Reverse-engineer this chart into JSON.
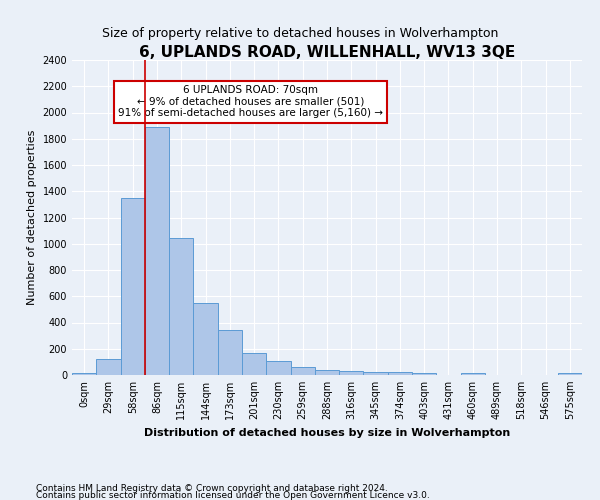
{
  "title": "6, UPLANDS ROAD, WILLENHALL, WV13 3QE",
  "subtitle": "Size of property relative to detached houses in Wolverhampton",
  "xlabel": "Distribution of detached houses by size in Wolverhampton",
  "ylabel": "Number of detached properties",
  "categories": [
    "0sqm",
    "29sqm",
    "58sqm",
    "86sqm",
    "115sqm",
    "144sqm",
    "173sqm",
    "201sqm",
    "230sqm",
    "259sqm",
    "288sqm",
    "316sqm",
    "345sqm",
    "374sqm",
    "403sqm",
    "431sqm",
    "460sqm",
    "489sqm",
    "518sqm",
    "546sqm",
    "575sqm"
  ],
  "values": [
    15,
    125,
    1350,
    1890,
    1045,
    545,
    340,
    170,
    110,
    62,
    38,
    30,
    25,
    20,
    18,
    0,
    15,
    0,
    0,
    0,
    15
  ],
  "bar_color": "#aec6e8",
  "bar_edge_color": "#5b9bd5",
  "ylim": [
    0,
    2400
  ],
  "yticks": [
    0,
    200,
    400,
    600,
    800,
    1000,
    1200,
    1400,
    1600,
    1800,
    2000,
    2200,
    2400
  ],
  "annotation_text": "6 UPLANDS ROAD: 70sqm\n← 9% of detached houses are smaller (501)\n91% of semi-detached houses are larger (5,160) →",
  "annotation_box_color": "#ffffff",
  "annotation_box_edge_color": "#cc0000",
  "vline_color": "#cc0000",
  "vline_x_index": 2,
  "footer1": "Contains HM Land Registry data © Crown copyright and database right 2024.",
  "footer2": "Contains public sector information licensed under the Open Government Licence v3.0.",
  "background_color": "#eaf0f8",
  "grid_color": "#ffffff",
  "title_fontsize": 11,
  "subtitle_fontsize": 9,
  "axis_label_fontsize": 8,
  "ylabel_fontsize": 8,
  "tick_fontsize": 7,
  "footer_fontsize": 6.5,
  "annotation_fontsize": 7.5
}
